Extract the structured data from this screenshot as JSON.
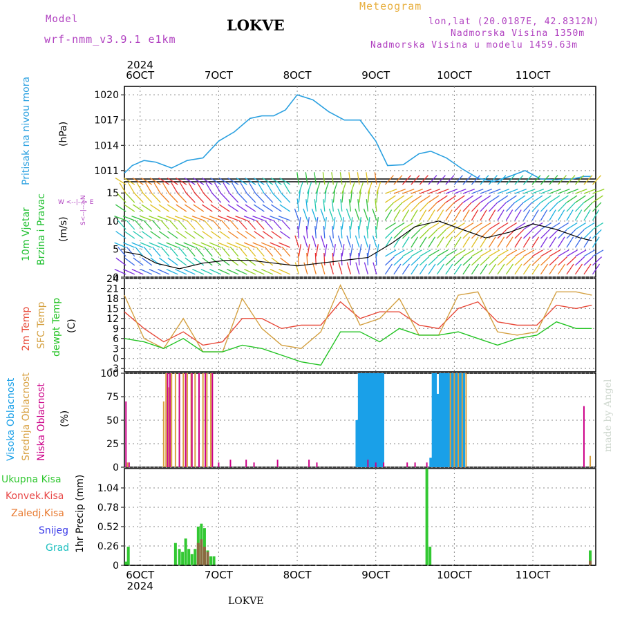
{
  "header": {
    "model_label": "Model",
    "model_value": "wrf-nmm_v3.9.1 e1km",
    "title": "LOKVE",
    "meteogram_label": "Meteogram",
    "lonlat": "lon,lat (20.0187E, 42.8312N)",
    "altitude": "Nadmorska Visina 1350m",
    "model_altitude": "Nadmorska Visina u modelu 1459.63m",
    "footer": "LOKVE",
    "watermark": "made by Angel"
  },
  "time_axis": {
    "year_label": "2024",
    "day_labels": [
      "6OCT",
      "7OCT",
      "8OCT",
      "9OCT",
      "10OCT",
      "11OCT"
    ],
    "start_offset_days": 0,
    "end_offset_days": 6,
    "label_days": [
      0.2,
      1.2,
      2.2,
      3.2,
      4.2,
      5.2
    ]
  },
  "colors": {
    "pressure": "#2aa0e0",
    "t2m": "#e84a3a",
    "tsfc": "#d4a040",
    "dewpt": "#22c322",
    "high_cloud": "#1aa0e8",
    "mid_cloud": "#d8a040",
    "low_cloud": "#cc0088",
    "precip_total": "#32c832",
    "precip_conv": "#e84848",
    "precip_frz": "#e87a30",
    "snow": "#3a3ae8",
    "grad": "#20c0c0",
    "wind_speed_label": "#20c030",
    "axis_title_purple": "#b040c0"
  },
  "panels": {
    "pressure": {
      "ylabel_left": "Pritisak na nivou mora",
      "unit": "(hPa)",
      "ticks": [
        "1011",
        "1014",
        "1017",
        "1020"
      ]
    },
    "wind": {
      "ylabel_left1": "10m Vjetar",
      "ylabel_left2": "Brzina i Pravac",
      "unit": "(m/s)",
      "ticks": [
        "0",
        "5",
        "10",
        "15"
      ],
      "compass": "W  <--|--> E",
      "compass_v": "S<--|-->N"
    },
    "temp": {
      "label1": "2m Temp",
      "label2": "SFC Temp",
      "label3": "dewpt Temp",
      "unit": "(C)",
      "ticks": [
        "-3",
        "0",
        "3",
        "6",
        "9",
        "12",
        "15",
        "18",
        "21",
        "24"
      ]
    },
    "cloud": {
      "label1": "Visoka Oblacnost",
      "label2": "Srednja Oblacnost",
      "label3": "Niska Oblacnost",
      "unit": "(%)",
      "ticks": [
        "0",
        "25",
        "50",
        "75",
        "100"
      ]
    },
    "precip": {
      "legend": [
        "Ukupna Kisa",
        "Konvek.Kisa",
        "Zaledj.Kisa",
        "Snijeg",
        "Grad"
      ],
      "unit": "1hr Precip (mm)",
      "ticks": [
        "0",
        "0.26",
        "0.52",
        "0.78",
        "1.04"
      ]
    }
  },
  "chart_data": [
    {
      "type": "line",
      "title": "",
      "ylabel": "(hPa)",
      "ylim": [
        1010,
        1021
      ],
      "x": [
        0,
        0.1,
        0.25,
        0.4,
        0.6,
        0.8,
        1.0,
        1.2,
        1.4,
        1.6,
        1.75,
        1.9,
        2.05,
        2.2,
        2.4,
        2.6,
        2.8,
        3.0,
        3.2,
        3.35,
        3.55,
        3.75,
        3.9,
        4.1,
        4.3,
        4.5,
        4.7,
        4.9,
        5.1,
        5.3,
        5.5,
        5.7,
        5.85,
        5.95
      ],
      "series": [
        {
          "name": "pressure",
          "values": [
            1010.7,
            1011.6,
            1012.2,
            1012.0,
            1011.3,
            1012.2,
            1012.5,
            1014.5,
            1015.6,
            1017.2,
            1017.5,
            1017.5,
            1018.2,
            1020.0,
            1019.4,
            1018.0,
            1017.0,
            1017.0,
            1014.5,
            1011.6,
            1011.7,
            1013.0,
            1013.3,
            1012.5,
            1011.2,
            1010.1,
            1009.7,
            1010.3,
            1011.0,
            1010.0,
            1009.9,
            1010.0,
            1010.3,
            1010.3
          ]
        }
      ]
    },
    {
      "type": "line",
      "title": "",
      "ylabel": "(m/s)",
      "ylim": [
        0,
        17
      ],
      "x": [
        0,
        0.2,
        0.4,
        0.7,
        1.0,
        1.3,
        1.6,
        1.9,
        2.2,
        2.5,
        2.8,
        3.1,
        3.4,
        3.7,
        4.0,
        4.3,
        4.6,
        4.9,
        5.2,
        5.5,
        5.8,
        5.95
      ],
      "series": [
        {
          "name": "wind speed",
          "values": [
            4.5,
            4.0,
            2.5,
            1.5,
            2.5,
            3.0,
            3.0,
            2.5,
            2.0,
            2.5,
            3.0,
            3.5,
            6.0,
            9.0,
            10.0,
            8.5,
            7.0,
            8.0,
            9.5,
            8.5,
            7.0,
            6.5
          ]
        }
      ]
    },
    {
      "type": "line",
      "title": "",
      "ylabel": "(C)",
      "ylim": [
        -4,
        24
      ],
      "x": [
        0,
        0.25,
        0.5,
        0.75,
        1.0,
        1.25,
        1.5,
        1.75,
        2.0,
        2.25,
        2.5,
        2.75,
        3.0,
        3.25,
        3.5,
        3.75,
        4.0,
        4.25,
        4.5,
        4.75,
        5.0,
        5.25,
        5.5,
        5.75,
        5.95
      ],
      "series": [
        {
          "name": "2m Temp",
          "values": [
            14,
            9,
            5,
            8,
            4,
            5,
            12,
            12,
            9,
            10,
            10,
            17,
            12,
            14,
            14,
            10,
            9,
            15,
            17,
            11,
            10,
            10,
            16,
            15,
            16
          ]
        },
        {
          "name": "SFC Temp",
          "values": [
            19,
            6,
            3,
            12,
            2,
            2,
            18,
            9,
            4,
            3,
            8,
            22,
            10,
            12,
            18,
            7,
            7,
            19,
            20,
            8,
            7,
            8,
            20,
            20,
            19
          ]
        },
        {
          "name": "dewpt Temp",
          "values": [
            6,
            5,
            3,
            6,
            2,
            2,
            4,
            3,
            1,
            -1,
            -2,
            8,
            8,
            5,
            9,
            7,
            7,
            8,
            6,
            4,
            6,
            7,
            11,
            9,
            9
          ]
        }
      ]
    },
    {
      "type": "bar",
      "title": "",
      "ylabel": "(%)",
      "ylim": [
        0,
        100
      ],
      "series": [
        {
          "name": "Visoka Oblacnost",
          "x": [
            2.96,
            2.99,
            3.02,
            3.05,
            3.08,
            3.11,
            3.14,
            3.17,
            3.2,
            3.23,
            3.26,
            3.29,
            3.9,
            3.93,
            3.96,
            3.99,
            4.02,
            4.05,
            4.08,
            4.11,
            4.14,
            4.17,
            4.2,
            4.23,
            4.26,
            4.29,
            4.32
          ],
          "values": [
            50,
            100,
            100,
            100,
            100,
            100,
            100,
            100,
            100,
            100,
            100,
            100,
            10,
            100,
            100,
            78,
            100,
            100,
            100,
            100,
            100,
            100,
            100,
            100,
            100,
            100,
            100
          ]
        },
        {
          "name": "Srednja Oblacnost",
          "x": [
            0.04,
            0.5,
            0.53,
            0.56,
            0.6,
            0.65,
            0.7,
            0.75,
            0.8,
            0.85,
            0.9,
            0.95,
            1.0,
            1.05,
            1.1,
            4.15,
            4.2,
            4.25,
            4.3,
            4.35,
            5.93
          ],
          "values": [
            5,
            70,
            100,
            85,
            100,
            100,
            100,
            100,
            100,
            100,
            100,
            100,
            100,
            100,
            100,
            100,
            100,
            100,
            100,
            100,
            12
          ]
        },
        {
          "name": "Niska Oblacnost",
          "x": [
            0.02,
            0.06,
            0.55,
            0.58,
            0.7,
            0.78,
            0.86,
            0.95,
            1.03,
            1.12,
            1.2,
            1.35,
            1.55,
            1.65,
            1.95,
            2.35,
            2.45,
            3.1,
            3.2,
            3.3,
            3.6,
            3.7,
            3.85,
            5.85
          ],
          "values": [
            70,
            5,
            100,
            100,
            100,
            100,
            100,
            100,
            100,
            100,
            5,
            8,
            8,
            5,
            8,
            8,
            5,
            8,
            5,
            5,
            5,
            5,
            5,
            65
          ]
        }
      ]
    },
    {
      "type": "bar",
      "title": "",
      "ylabel": "1hr Precip (mm)",
      "ylim": [
        0,
        1.3
      ],
      "series": [
        {
          "name": "Ukupna Kisa",
          "x": [
            0.02,
            0.05,
            0.65,
            0.7,
            0.74,
            0.78,
            0.82,
            0.86,
            0.9,
            0.94,
            0.98,
            1.02,
            1.06,
            1.1,
            1.14,
            3.85,
            3.89,
            5.93
          ],
          "values": [
            0.05,
            0.25,
            0.3,
            0.22,
            0.18,
            0.36,
            0.22,
            0.15,
            0.22,
            0.52,
            0.56,
            0.5,
            0.2,
            0.12,
            0.12,
            1.3,
            0.25,
            0.2
          ]
        },
        {
          "name": "Konvek.Kisa",
          "x": [
            0.94,
            0.98,
            1.02,
            1.06,
            5.93
          ],
          "values": [
            0.3,
            0.35,
            0.25,
            0.18,
            0.06
          ]
        },
        {
          "name": "Zaledj.Kisa",
          "x": [],
          "values": []
        },
        {
          "name": "Snijeg",
          "x": [],
          "values": []
        },
        {
          "name": "Grad",
          "x": [],
          "values": []
        }
      ]
    }
  ]
}
